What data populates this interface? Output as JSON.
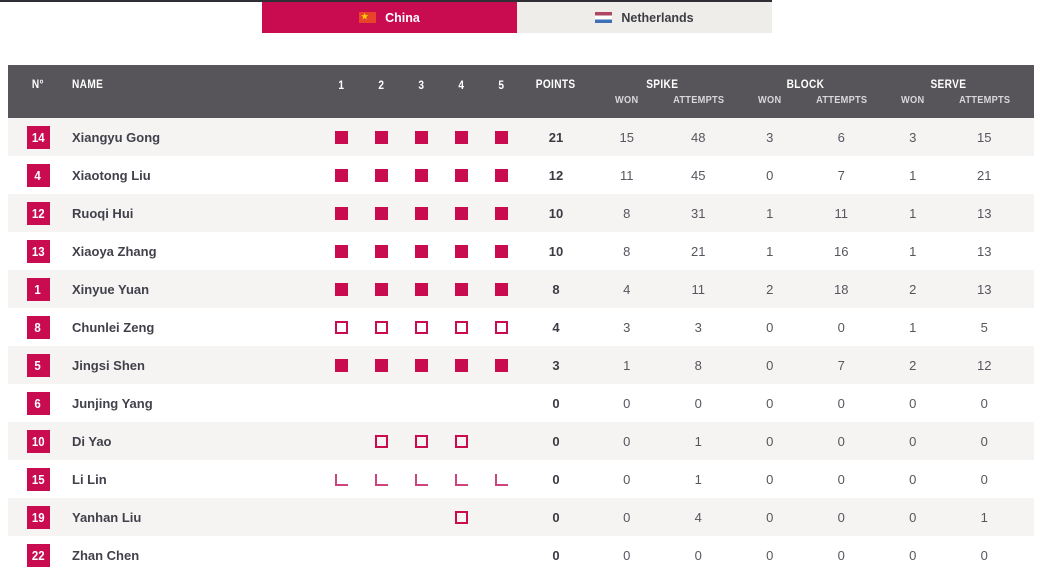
{
  "tabs": [
    {
      "label": "China",
      "flag": "china-flag",
      "active": true
    },
    {
      "label": "Netherlands",
      "flag": "netherlands-flag",
      "active": false
    }
  ],
  "table": {
    "header": {
      "number": "N°",
      "name": "NAME",
      "sets": [
        "1",
        "2",
        "3",
        "4",
        "5"
      ],
      "points": "POINTS",
      "groups": [
        {
          "label": "SPIKE",
          "won": "WON",
          "attempts": "ATTEMPTS"
        },
        {
          "label": "BLOCK",
          "won": "WON",
          "attempts": "ATTEMPTS"
        },
        {
          "label": "SERVE",
          "won": "WON",
          "attempts": "ATTEMPTS"
        }
      ]
    },
    "rows": [
      {
        "nr": "14",
        "name": "Xiangyu Gong",
        "sets": [
          "full",
          "full",
          "full",
          "full",
          "full"
        ],
        "points": "21",
        "spike_won": "15",
        "spike_attempts": "48",
        "block_won": "3",
        "block_attempts": "6",
        "serve_won": "3",
        "serve_attempts": "15"
      },
      {
        "nr": "4",
        "name": "Xiaotong Liu",
        "sets": [
          "full",
          "full",
          "full",
          "full",
          "full"
        ],
        "points": "12",
        "spike_won": "11",
        "spike_attempts": "45",
        "block_won": "0",
        "block_attempts": "7",
        "serve_won": "1",
        "serve_attempts": "21"
      },
      {
        "nr": "12",
        "name": "Ruoqi Hui",
        "sets": [
          "full",
          "full",
          "full",
          "full",
          "full"
        ],
        "points": "10",
        "spike_won": "8",
        "spike_attempts": "31",
        "block_won": "1",
        "block_attempts": "11",
        "serve_won": "1",
        "serve_attempts": "13"
      },
      {
        "nr": "13",
        "name": "Xiaoya Zhang",
        "sets": [
          "full",
          "full",
          "full",
          "full",
          "full"
        ],
        "points": "10",
        "spike_won": "8",
        "spike_attempts": "21",
        "block_won": "1",
        "block_attempts": "16",
        "serve_won": "1",
        "serve_attempts": "13"
      },
      {
        "nr": "1",
        "name": "Xinyue Yuan",
        "sets": [
          "full",
          "full",
          "full",
          "full",
          "full"
        ],
        "points": "8",
        "spike_won": "4",
        "spike_attempts": "11",
        "block_won": "2",
        "block_attempts": "18",
        "serve_won": "2",
        "serve_attempts": "13"
      },
      {
        "nr": "8",
        "name": "Chunlei Zeng",
        "sets": [
          "hollow",
          "hollow",
          "hollow",
          "hollow",
          "hollow"
        ],
        "points": "4",
        "spike_won": "3",
        "spike_attempts": "3",
        "block_won": "0",
        "block_attempts": "0",
        "serve_won": "1",
        "serve_attempts": "5"
      },
      {
        "nr": "5",
        "name": "Jingsi Shen",
        "sets": [
          "full",
          "full",
          "full",
          "full",
          "full"
        ],
        "points": "3",
        "spike_won": "1",
        "spike_attempts": "8",
        "block_won": "0",
        "block_attempts": "7",
        "serve_won": "2",
        "serve_attempts": "12"
      },
      {
        "nr": "6",
        "name": "Junjing Yang",
        "sets": [
          "none",
          "none",
          "none",
          "none",
          "none"
        ],
        "points": "0",
        "spike_won": "0",
        "spike_attempts": "0",
        "block_won": "0",
        "block_attempts": "0",
        "serve_won": "0",
        "serve_attempts": "0"
      },
      {
        "nr": "10",
        "name": "Di Yao",
        "sets": [
          "none",
          "hollow",
          "hollow",
          "hollow",
          "none"
        ],
        "points": "0",
        "spike_won": "0",
        "spike_attempts": "1",
        "block_won": "0",
        "block_attempts": "0",
        "serve_won": "0",
        "serve_attempts": "0"
      },
      {
        "nr": "15",
        "name": "Li Lin",
        "sets": [
          "libero",
          "libero",
          "libero",
          "libero",
          "libero"
        ],
        "points": "0",
        "spike_won": "0",
        "spike_attempts": "1",
        "block_won": "0",
        "block_attempts": "0",
        "serve_won": "0",
        "serve_attempts": "0"
      },
      {
        "nr": "19",
        "name": "Yanhan Liu",
        "sets": [
          "none",
          "none",
          "none",
          "hollow",
          "none"
        ],
        "points": "0",
        "spike_won": "0",
        "spike_attempts": "4",
        "block_won": "0",
        "block_attempts": "0",
        "serve_won": "0",
        "serve_attempts": "1"
      },
      {
        "nr": "22",
        "name": "Zhan Chen",
        "sets": [
          "none",
          "none",
          "none",
          "none",
          "none"
        ],
        "points": "0",
        "spike_won": "0",
        "spike_attempts": "0",
        "block_won": "0",
        "block_attempts": "0",
        "serve_won": "0",
        "serve_attempts": "0"
      }
    ]
  },
  "colors": {
    "accent": "#c90c50",
    "header_bg": "#575559",
    "row_alt": "#f5f4f2",
    "tab_inactive_bg": "#efedea"
  }
}
